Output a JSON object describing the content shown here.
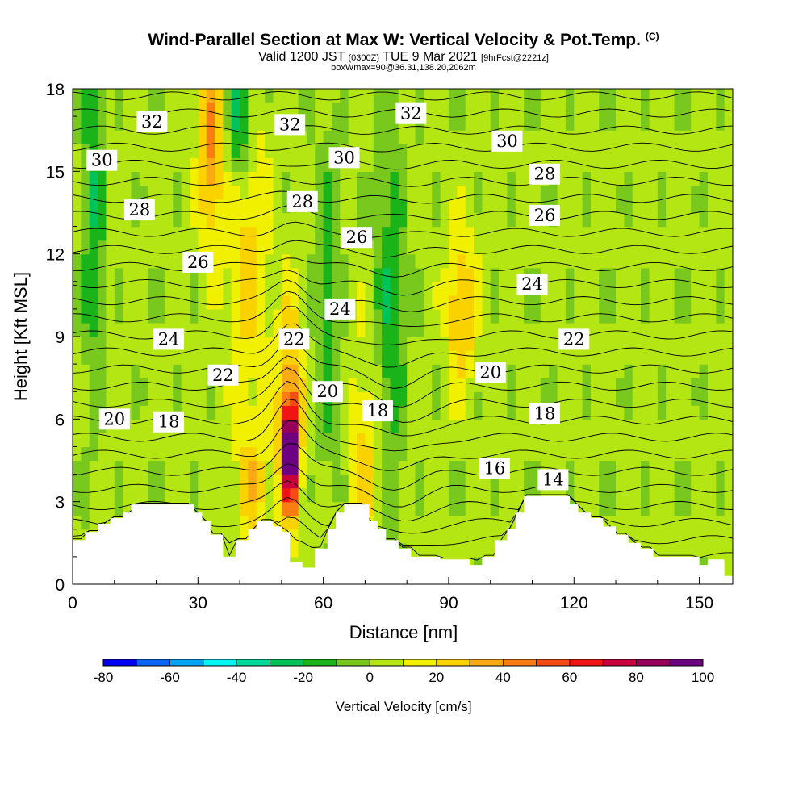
{
  "title": "Wind-Parallel Section at Max W: Vertical Velocity & Pot.Temp.",
  "title_mark": "(C)",
  "subtitle": {
    "valid": "Valid 1200 JST",
    "utc": "(0300Z)",
    "date": "TUE 9 Mar 2021",
    "fcst": "[9hrFcst@2221z]"
  },
  "subsubtitle": "boxWmax=90@36.31,138.20,2062m",
  "chart_data": {
    "type": "heatmap",
    "xlabel": "Distance [nm]",
    "ylabel": "Height [Kft MSL]",
    "xlim": [
      0,
      158
    ],
    "ylim": [
      0,
      18
    ],
    "xticks": [
      0,
      30,
      60,
      90,
      120,
      150
    ],
    "yticks": [
      0,
      3,
      6,
      9,
      12,
      15,
      18
    ],
    "colorbar": {
      "label": "Vertical Velocity [cm/s]",
      "ticks": [
        -80,
        -60,
        -40,
        -20,
        0,
        20,
        40,
        60,
        80,
        100
      ],
      "levels": [
        -80,
        -70,
        -60,
        -50,
        -40,
        -30,
        -20,
        -10,
        0,
        10,
        20,
        30,
        40,
        50,
        60,
        70,
        80,
        90,
        100
      ],
      "colors": [
        "#0000f5",
        "#0a64f5",
        "#00a5f5",
        "#00f5f5",
        "#00d99a",
        "#00c45a",
        "#1ab31a",
        "#78c81e",
        "#b4e614",
        "#f0f000",
        "#fad200",
        "#faaa14",
        "#fa7d14",
        "#f54b14",
        "#f01414",
        "#c8003c",
        "#96005a",
        "#6e0082"
      ]
    },
    "theta_contours": [
      {
        "label": "14",
        "x": 115,
        "y": 3.8
      },
      {
        "label": "16",
        "x": 101,
        "y": 4.2
      },
      {
        "label": "18",
        "x": 23,
        "y": 5.9
      },
      {
        "label": "18",
        "x": 73,
        "y": 6.3
      },
      {
        "label": "18",
        "x": 113,
        "y": 6.2
      },
      {
        "label": "20",
        "x": 10,
        "y": 6.0
      },
      {
        "label": "20",
        "x": 61,
        "y": 7.0
      },
      {
        "label": "20",
        "x": 100,
        "y": 7.7
      },
      {
        "label": "22",
        "x": 36,
        "y": 7.6
      },
      {
        "label": "22",
        "x": 53,
        "y": 8.9
      },
      {
        "label": "22",
        "x": 120,
        "y": 8.9
      },
      {
        "label": "24",
        "x": 23,
        "y": 8.9
      },
      {
        "label": "24",
        "x": 64,
        "y": 10.0
      },
      {
        "label": "24",
        "x": 110,
        "y": 10.9
      },
      {
        "label": "26",
        "x": 30,
        "y": 11.7
      },
      {
        "label": "26",
        "x": 68,
        "y": 12.6
      },
      {
        "label": "26",
        "x": 113,
        "y": 13.4
      },
      {
        "label": "28",
        "x": 16,
        "y": 13.6
      },
      {
        "label": "28",
        "x": 55,
        "y": 13.9
      },
      {
        "label": "28",
        "x": 113,
        "y": 14.9
      },
      {
        "label": "30",
        "x": 7,
        "y": 15.4
      },
      {
        "label": "30",
        "x": 65,
        "y": 15.5
      },
      {
        "label": "30",
        "x": 104,
        "y": 16.1
      },
      {
        "label": "32",
        "x": 19,
        "y": 16.8
      },
      {
        "label": "32",
        "x": 52,
        "y": 16.7
      },
      {
        "label": "32",
        "x": 81,
        "y": 17.1
      }
    ],
    "terrain": [
      [
        0,
        1.6
      ],
      [
        3,
        1.6
      ],
      [
        3,
        1.9
      ],
      [
        6,
        1.9
      ],
      [
        6,
        2.2
      ],
      [
        9,
        2.2
      ],
      [
        9,
        2.4
      ],
      [
        12,
        2.4
      ],
      [
        12,
        2.6
      ],
      [
        14,
        2.6
      ],
      [
        14,
        2.9
      ],
      [
        29,
        2.9
      ],
      [
        29,
        2.6
      ],
      [
        31,
        2.6
      ],
      [
        31,
        2.3
      ],
      [
        33,
        2.3
      ],
      [
        33,
        1.8
      ],
      [
        36,
        1.8
      ],
      [
        36,
        1.0
      ],
      [
        39,
        1.0
      ],
      [
        39,
        1.6
      ],
      [
        42,
        1.6
      ],
      [
        42,
        2.0
      ],
      [
        44,
        2.0
      ],
      [
        44,
        2.3
      ],
      [
        48,
        2.3
      ],
      [
        48,
        2.1
      ],
      [
        50,
        2.1
      ],
      [
        50,
        1.9
      ],
      [
        52,
        1.9
      ],
      [
        52,
        0.8
      ],
      [
        55,
        0.8
      ],
      [
        55,
        0.6
      ],
      [
        58,
        0.6
      ],
      [
        58,
        1.3
      ],
      [
        61,
        1.3
      ],
      [
        61,
        2.0
      ],
      [
        63,
        2.0
      ],
      [
        63,
        2.6
      ],
      [
        65,
        2.6
      ],
      [
        65,
        2.9
      ],
      [
        71,
        2.9
      ],
      [
        71,
        2.3
      ],
      [
        73,
        2.3
      ],
      [
        73,
        2.0
      ],
      [
        75,
        2.0
      ],
      [
        75,
        1.6
      ],
      [
        78,
        1.6
      ],
      [
        78,
        1.3
      ],
      [
        81,
        1.3
      ],
      [
        81,
        1.0
      ],
      [
        88,
        1.0
      ],
      [
        88,
        0.9
      ],
      [
        95,
        0.9
      ],
      [
        95,
        0.7
      ],
      [
        98,
        0.7
      ],
      [
        98,
        1.0
      ],
      [
        101,
        1.0
      ],
      [
        101,
        1.6
      ],
      [
        104,
        1.6
      ],
      [
        104,
        2.0
      ],
      [
        106,
        2.0
      ],
      [
        106,
        2.6
      ],
      [
        108,
        2.6
      ],
      [
        108,
        3.2
      ],
      [
        119,
        3.2
      ],
      [
        119,
        2.9
      ],
      [
        121,
        2.9
      ],
      [
        121,
        2.6
      ],
      [
        124,
        2.6
      ],
      [
        124,
        2.4
      ],
      [
        127,
        2.4
      ],
      [
        127,
        2.1
      ],
      [
        130,
        2.1
      ],
      [
        130,
        1.8
      ],
      [
        133,
        1.8
      ],
      [
        133,
        1.5
      ],
      [
        136,
        1.5
      ],
      [
        136,
        1.3
      ],
      [
        139,
        1.3
      ],
      [
        139,
        1.0
      ],
      [
        150,
        1.0
      ],
      [
        150,
        0.7
      ],
      [
        152,
        0.7
      ],
      [
        152,
        0.9
      ],
      [
        156,
        0.9
      ],
      [
        156,
        0.3
      ],
      [
        158,
        0.3
      ]
    ],
    "w_features": [
      {
        "x": 52,
        "y": 4.8,
        "w": 90,
        "sx": 1.2,
        "sy": 1.3
      },
      {
        "x": 52,
        "y": 6.0,
        "w": 35,
        "sx": 2.2,
        "sy": 3.0
      },
      {
        "x": 93,
        "y": 10.0,
        "w": 30,
        "sx": 2.5,
        "sy": 2.0
      },
      {
        "x": 33,
        "y": 16.0,
        "w": 40,
        "sx": 2.0,
        "sy": 2.5
      },
      {
        "x": 42,
        "y": 12.0,
        "w": 22,
        "sx": 3.5,
        "sy": 4.0
      },
      {
        "x": 70,
        "y": 4.5,
        "w": 20,
        "sx": 2.5,
        "sy": 3.0
      },
      {
        "x": 43,
        "y": 3.5,
        "w": 22,
        "sx": 3.0,
        "sy": 1.5
      },
      {
        "x": 40,
        "y": 17.0,
        "w": -35,
        "sx": 2.0,
        "sy": 1.8
      },
      {
        "x": 5,
        "y": 14.0,
        "w": -22,
        "sx": 2.0,
        "sy": 5.0
      },
      {
        "x": 76,
        "y": 10.0,
        "w": -22,
        "sx": 2.5,
        "sy": 5.0
      },
      {
        "x": 61,
        "y": 10.0,
        "w": -20,
        "sx": 2.0,
        "sy": 4.0
      }
    ]
  }
}
